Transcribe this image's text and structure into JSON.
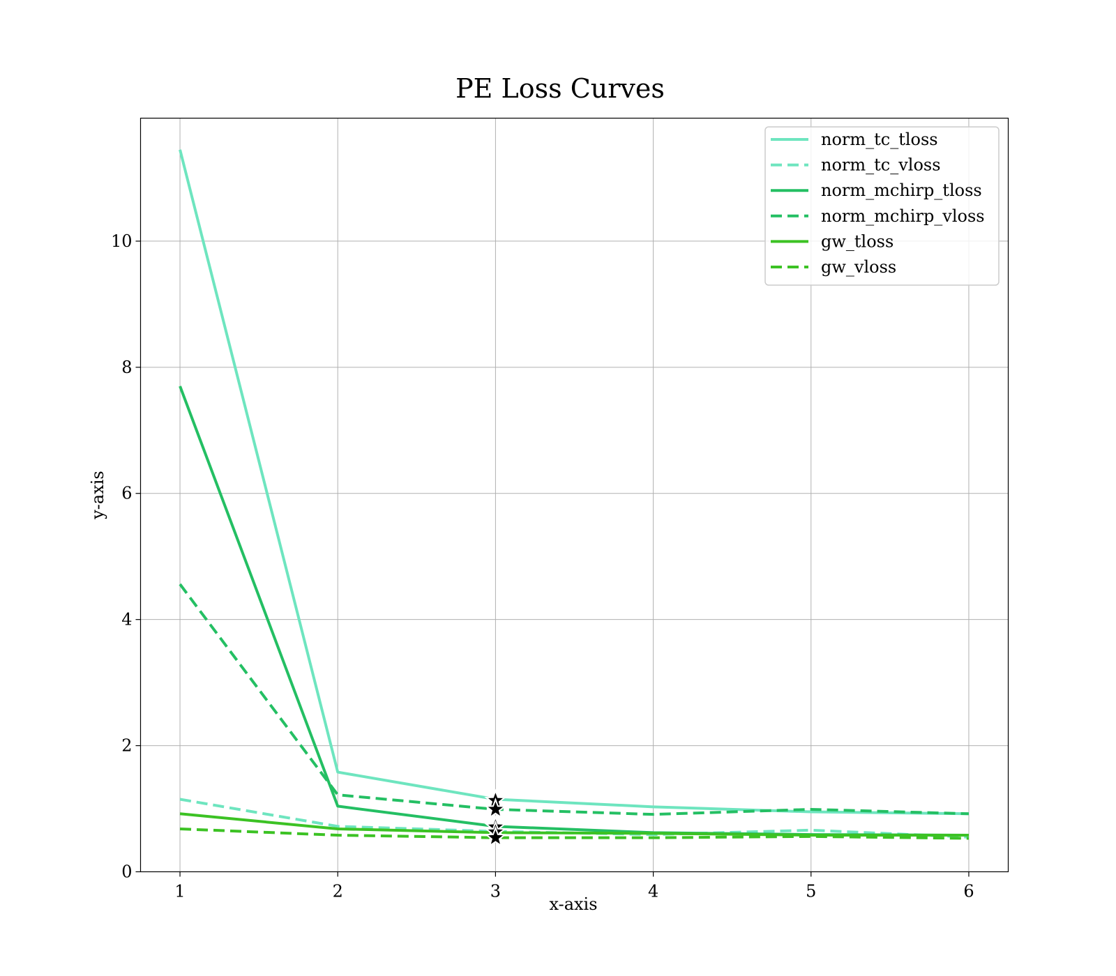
{
  "chart_data": {
    "type": "line",
    "title": "PE Loss Curves",
    "xlabel": "x-axis",
    "ylabel": "y-axis",
    "x": [
      1,
      2,
      3,
      4,
      5,
      6
    ],
    "xlim": [
      0.75,
      6.25
    ],
    "ylim": [
      0,
      11.95
    ],
    "xticks": [
      1,
      2,
      3,
      4,
      5,
      6
    ],
    "yticks": [
      0,
      2,
      4,
      6,
      8,
      10
    ],
    "grid": true,
    "legend_position": "top-right",
    "series": [
      {
        "name": "norm_tc_tloss",
        "color": "#6ee5bf",
        "style": "solid",
        "values": [
          11.45,
          1.58,
          1.15,
          1.03,
          0.95,
          0.92
        ]
      },
      {
        "name": "norm_tc_vloss",
        "color": "#6ee5bf",
        "style": "dashed",
        "values": [
          1.15,
          0.72,
          0.64,
          0.59,
          0.66,
          0.55
        ]
      },
      {
        "name": "norm_mchirp_tloss",
        "color": "#24bf63",
        "style": "solid",
        "values": [
          7.7,
          1.04,
          0.72,
          0.62,
          0.59,
          0.58
        ]
      },
      {
        "name": "norm_mchirp_vloss",
        "color": "#24bf63",
        "style": "dashed",
        "values": [
          4.56,
          1.22,
          0.99,
          0.91,
          0.99,
          0.92
        ]
      },
      {
        "name": "gw_tloss",
        "color": "#3cc224",
        "style": "solid",
        "values": [
          0.92,
          0.68,
          0.62,
          0.61,
          0.58,
          0.58
        ]
      },
      {
        "name": "gw_vloss",
        "color": "#3cc224",
        "style": "dashed",
        "values": [
          0.68,
          0.58,
          0.54,
          0.54,
          0.56,
          0.53
        ]
      }
    ],
    "markers": [
      {
        "x": 3,
        "y": 1.13,
        "symbol": "star"
      },
      {
        "x": 3,
        "y": 0.99,
        "symbol": "star"
      },
      {
        "x": 3,
        "y": 0.71,
        "symbol": "star"
      },
      {
        "x": 3,
        "y": 0.63,
        "symbol": "star"
      },
      {
        "x": 3,
        "y": 0.54,
        "symbol": "star"
      }
    ]
  }
}
